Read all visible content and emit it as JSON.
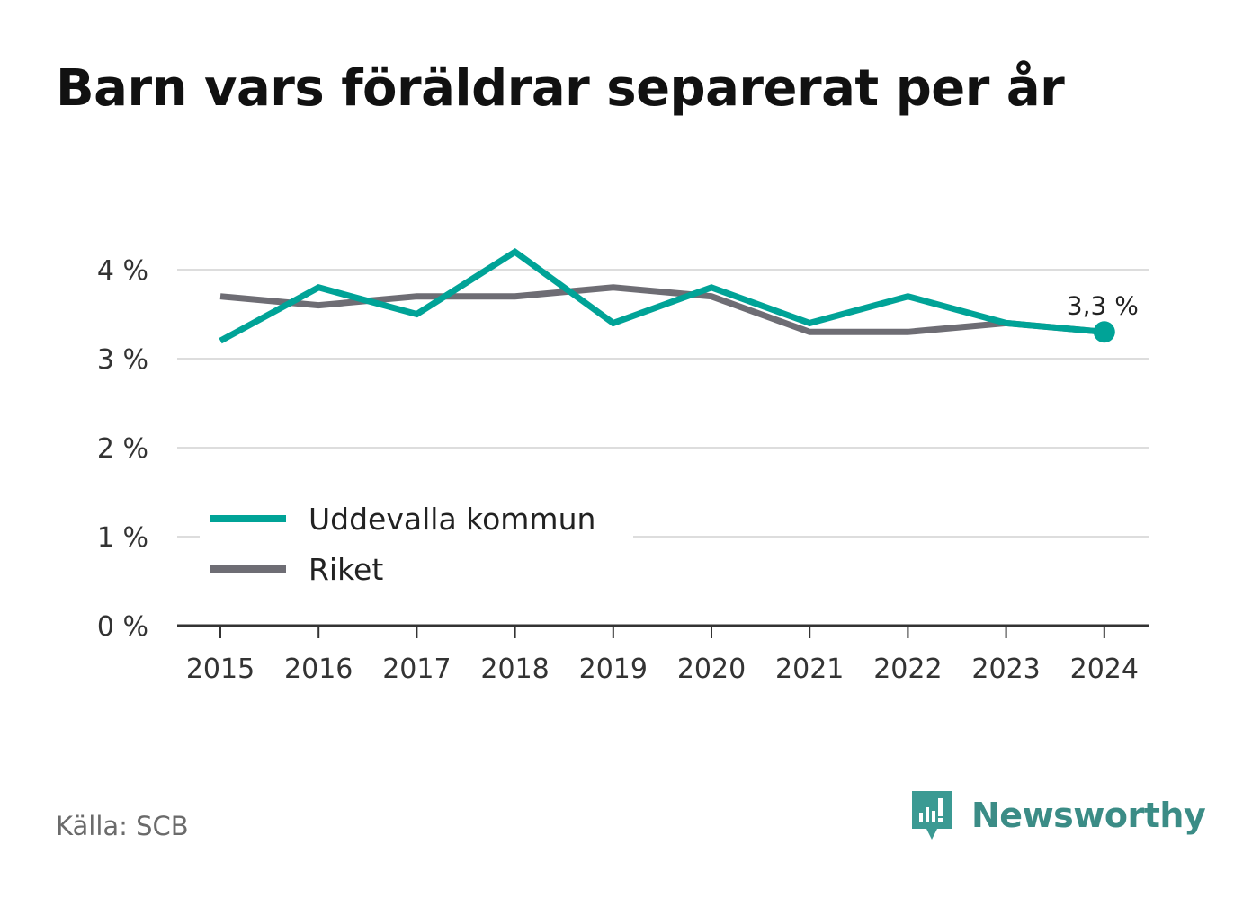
{
  "title": "Barn vars föräldrar separerat per år",
  "source": "Källa: SCB",
  "brand": {
    "name": "Newsworthy",
    "icon": "newsworthy-logo-icon",
    "color": "#3b9a93"
  },
  "colors": {
    "uddevalla": "#00a397",
    "riket": "#6e6d74",
    "grid": "#dddddd",
    "axis": "#333333",
    "text": "#333333"
  },
  "chart_data": {
    "type": "line",
    "title": "Barn vars föräldrar separerat per år",
    "xlabel": "",
    "ylabel": "",
    "x": [
      "2015",
      "2016",
      "2017",
      "2018",
      "2019",
      "2020",
      "2021",
      "2022",
      "2023",
      "2024"
    ],
    "ylim": [
      0,
      4.2
    ],
    "yticks": [
      0,
      1,
      2,
      3,
      4
    ],
    "ytick_labels": [
      "0 %",
      "1 %",
      "2 %",
      "3 %",
      "4 %"
    ],
    "grid": true,
    "legend_position": "bottom-left",
    "series": [
      {
        "name": "Uddevalla kommun",
        "color": "#00a397",
        "values": [
          3.2,
          3.8,
          3.5,
          4.2,
          3.4,
          3.8,
          3.4,
          3.7,
          3.4,
          3.3
        ]
      },
      {
        "name": "Riket",
        "color": "#6e6d74",
        "values": [
          3.7,
          3.6,
          3.7,
          3.7,
          3.8,
          3.7,
          3.3,
          3.3,
          3.4,
          3.3
        ]
      }
    ],
    "annotation": {
      "label": "3,3 %",
      "series": 0,
      "index": 9
    }
  }
}
